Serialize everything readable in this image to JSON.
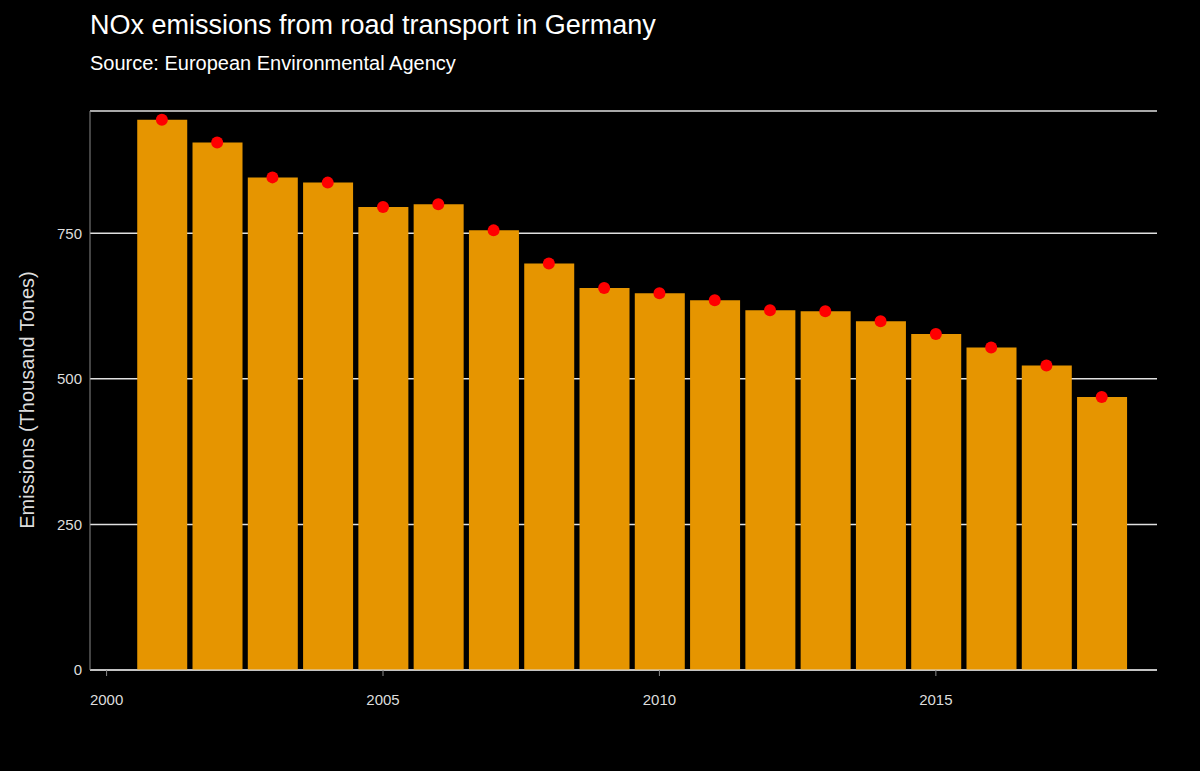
{
  "chart_data": {
    "type": "bar",
    "title": "NOx emissions from road transport in Germany",
    "subtitle": "Source: European Environmental Agency",
    "y_label": "Emissions (Thousand Tones)",
    "x": [
      2001,
      2002,
      2003,
      2004,
      2005,
      2006,
      2007,
      2008,
      2009,
      2010,
      2011,
      2012,
      2013,
      2014,
      2015,
      2016,
      2017,
      2018
    ],
    "series": [
      {
        "type": "bar",
        "color": "#E69500",
        "values": [
          945,
          906,
          846,
          837,
          795,
          800,
          755,
          698,
          656,
          647,
          635,
          618,
          616,
          599,
          577,
          554,
          523,
          469
        ]
      },
      {
        "type": "scatter",
        "color": "#FF0000",
        "marker": "circle",
        "values": [
          945,
          906,
          846,
          837,
          795,
          800,
          755,
          698,
          656,
          647,
          635,
          618,
          616,
          599,
          577,
          554,
          523,
          469
        ]
      }
    ],
    "xlim": [
      1999.7,
      2019
    ],
    "xticks": [
      2000,
      2005,
      2010,
      2015
    ],
    "ylim": [
      0,
      960
    ],
    "yticks": [
      0,
      250,
      500,
      750
    ],
    "grid": true
  }
}
